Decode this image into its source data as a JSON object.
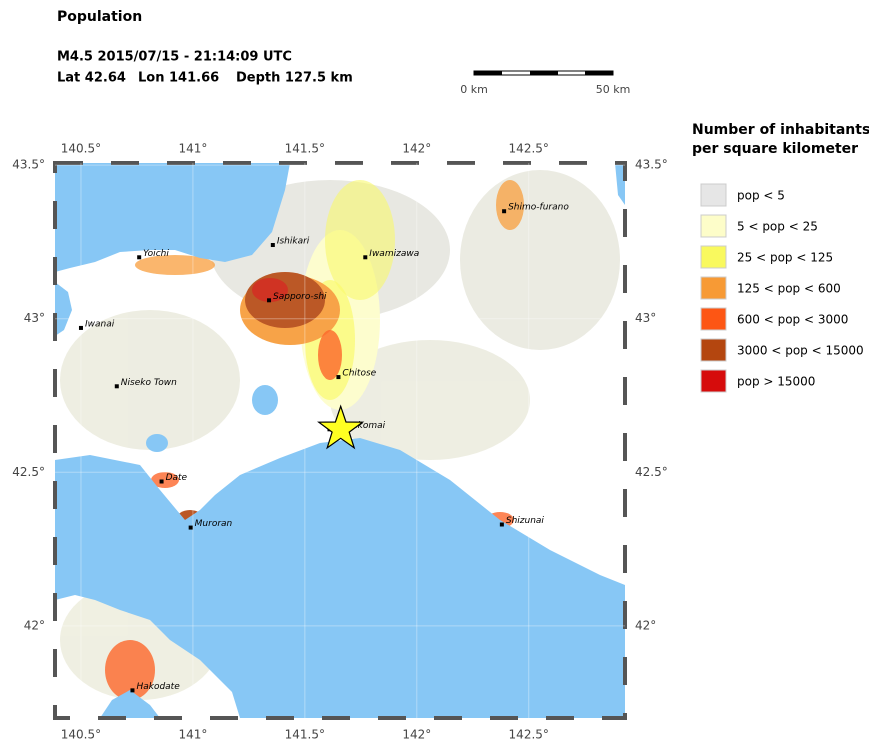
{
  "header": {
    "title": "Population",
    "event": "M4.5  2015/07/15 - 21:14:09 UTC",
    "lat": "Lat 42.64",
    "lon": "Lon 141.66",
    "depth": "Depth 127.5 km"
  },
  "scale_bar": {
    "start": "0 km",
    "end": "50 km"
  },
  "legend": {
    "title_line1": "Number of inhabitants",
    "title_line2": "per square kilometer",
    "items": [
      {
        "label": "pop < 5",
        "color": "#e6e6e6"
      },
      {
        "label": "5 < pop < 25",
        "color": "#fdfdc9"
      },
      {
        "label": "25 < pop < 125",
        "color": "#f9f95e"
      },
      {
        "label": "125 < pop < 600",
        "color": "#f79a35"
      },
      {
        "label": "600 < pop < 3000",
        "color": "#fd5614"
      },
      {
        "label": "3000 < pop < 15000",
        "color": "#b4460f"
      },
      {
        "label": "pop > 15000",
        "color": "#d60c0c"
      }
    ]
  },
  "map": {
    "xlim": [
      140.384,
      142.93
    ],
    "ylim": [
      41.7,
      43.507
    ],
    "xticks": [
      {
        "value": 140.5,
        "label": "140.5°"
      },
      {
        "value": 141,
        "label": "141°"
      },
      {
        "value": 141.5,
        "label": "141.5°"
      },
      {
        "value": 142,
        "label": "142°"
      },
      {
        "value": 142.5,
        "label": "142.5°"
      }
    ],
    "yticks": [
      {
        "value": 43.5,
        "label": "43.5°"
      },
      {
        "value": 43,
        "label": "43°"
      },
      {
        "value": 42.5,
        "label": "42.5°"
      },
      {
        "value": 42,
        "label": "42°"
      }
    ],
    "epicenter": {
      "lon": 141.66,
      "lat": 42.64
    },
    "cities": [
      {
        "name": "Ishikari",
        "lon": 141.357,
        "lat": 43.24
      },
      {
        "name": "Yoichi",
        "lon": 140.76,
        "lat": 43.2
      },
      {
        "name": "Iwamizawa",
        "lon": 141.77,
        "lat": 43.2
      },
      {
        "name": "Shimo-furano",
        "lon": 142.39,
        "lat": 43.35
      },
      {
        "name": "Sapporo-shi",
        "lon": 141.34,
        "lat": 43.06
      },
      {
        "name": "Iwanai",
        "lon": 140.5,
        "lat": 42.97
      },
      {
        "name": "Niseko Town",
        "lon": 140.66,
        "lat": 42.78
      },
      {
        "name": "Chitose",
        "lon": 141.65,
        "lat": 42.81
      },
      {
        "name": "Tomakomai",
        "lon": 141.61,
        "lat": 42.64
      },
      {
        "name": "Date",
        "lon": 140.86,
        "lat": 42.47
      },
      {
        "name": "Muroran",
        "lon": 140.99,
        "lat": 42.32
      },
      {
        "name": "Shizunai",
        "lon": 142.38,
        "lat": 42.33
      },
      {
        "name": "Hakodate",
        "lon": 140.73,
        "lat": 41.79
      }
    ]
  }
}
